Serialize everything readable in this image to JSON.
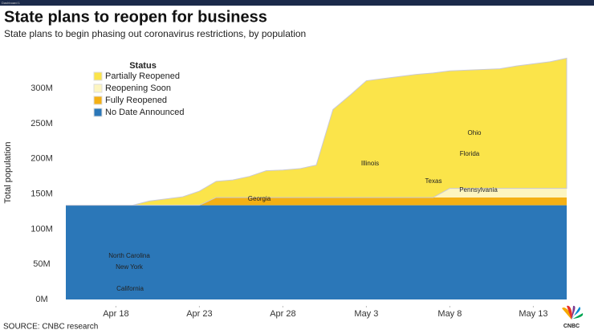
{
  "header": {
    "bar_label": "Dashboard 1"
  },
  "chart_data": {
    "type": "stacked_area",
    "title": "State plans to reopen for business",
    "subtitle": "State plans to begin phasing out coronavirus restrictions, by population",
    "y_label": "Total population",
    "source": "SOURCE: CNBC research",
    "logo": "CNBC",
    "legend_title": "Status",
    "categories": [
      "Apr 15",
      "Apr 16",
      "Apr 17",
      "Apr 18",
      "Apr 19",
      "Apr 20",
      "Apr 21",
      "Apr 22",
      "Apr 23",
      "Apr 24",
      "Apr 25",
      "Apr 26",
      "Apr 27",
      "Apr 28",
      "Apr 29",
      "Apr 30",
      "May 1",
      "May 2",
      "May 3",
      "May 4",
      "May 5",
      "May 6",
      "May 7",
      "May 8",
      "May 9",
      "May 10",
      "May 11",
      "May 12",
      "May 13",
      "May 14",
      "May 15"
    ],
    "xticks": [
      3,
      8,
      13,
      18,
      23,
      28
    ],
    "ylim": [
      0,
      355
    ],
    "yticks": [
      {
        "value": 0,
        "label": "0M"
      },
      {
        "value": 50,
        "label": "50M"
      },
      {
        "value": 100,
        "label": "100M"
      },
      {
        "value": 150,
        "label": "150M"
      },
      {
        "value": 200,
        "label": "200M"
      },
      {
        "value": 250,
        "label": "250M"
      },
      {
        "value": 300,
        "label": "300M"
      }
    ],
    "series": [
      {
        "name": "No Date Announced",
        "color": "#2b77b8",
        "values": [
          134,
          134,
          134,
          134,
          134,
          134,
          134,
          134,
          134,
          134,
          134,
          134,
          134,
          134,
          134,
          134,
          134,
          134,
          134,
          134,
          134,
          134,
          134,
          134,
          134,
          134,
          134,
          134,
          134,
          134,
          134
        ]
      },
      {
        "name": "Fully Reopened",
        "color": "#f4b014",
        "values": [
          0,
          0,
          0,
          0,
          0,
          0,
          0,
          0,
          0,
          11,
          11,
          11,
          11,
          11,
          11,
          11,
          11,
          11,
          11,
          11,
          11,
          11,
          11,
          11,
          11,
          11,
          11,
          11,
          11,
          11,
          11
        ]
      },
      {
        "name": "Reopening Soon",
        "color": "#fdf5c0",
        "values": [
          0,
          0,
          0,
          0,
          0,
          0,
          0,
          0,
          0,
          0,
          0,
          0,
          0,
          0,
          0,
          0,
          0,
          0,
          0,
          0,
          0,
          0,
          0,
          13,
          13,
          13,
          13,
          13,
          13,
          13,
          13
        ]
      },
      {
        "name": "Partially Reopened",
        "color": "#fbe44a",
        "values": [
          0,
          0,
          0,
          0,
          0,
          6,
          9,
          12,
          20,
          23,
          25,
          30,
          38,
          39,
          41,
          46,
          125,
          145,
          166,
          169,
          172,
          175,
          177,
          167,
          168,
          169,
          170,
          174,
          177,
          180,
          185
        ]
      }
    ],
    "annotations": [
      "California",
      "New York",
      "North Carolina",
      "Georgia",
      "Illinois",
      "Texas",
      "Florida",
      "Ohio",
      "Pennsylvania"
    ]
  }
}
